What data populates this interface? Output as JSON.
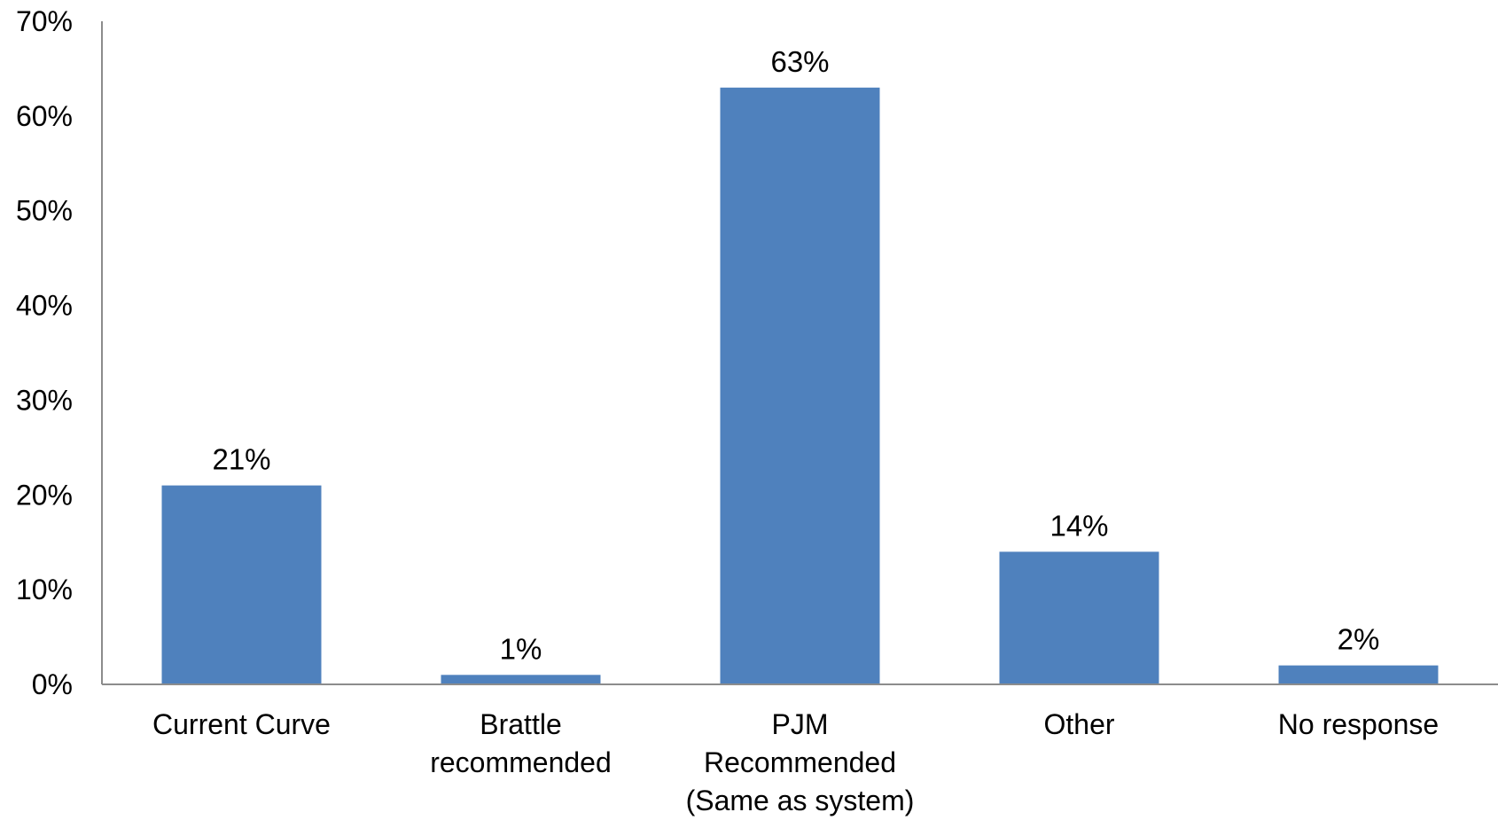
{
  "chart_data": {
    "type": "bar",
    "categories": [
      [
        "Current Curve"
      ],
      [
        "Brattle",
        "recommended"
      ],
      [
        "PJM",
        "Recommended",
        "(Same as system)"
      ],
      [
        "Other"
      ],
      [
        "No response"
      ]
    ],
    "values": [
      21,
      1,
      63,
      14,
      2
    ],
    "value_labels": [
      "21%",
      "1%",
      "63%",
      "14%",
      "2%"
    ],
    "yticks": [
      "0%",
      "10%",
      "20%",
      "30%",
      "40%",
      "50%",
      "60%",
      "70%"
    ],
    "ylim": [
      0,
      70
    ],
    "bar_color": "#4f81bd",
    "axis_color": "#8c8c8c",
    "grid": false,
    "legend": "none"
  }
}
